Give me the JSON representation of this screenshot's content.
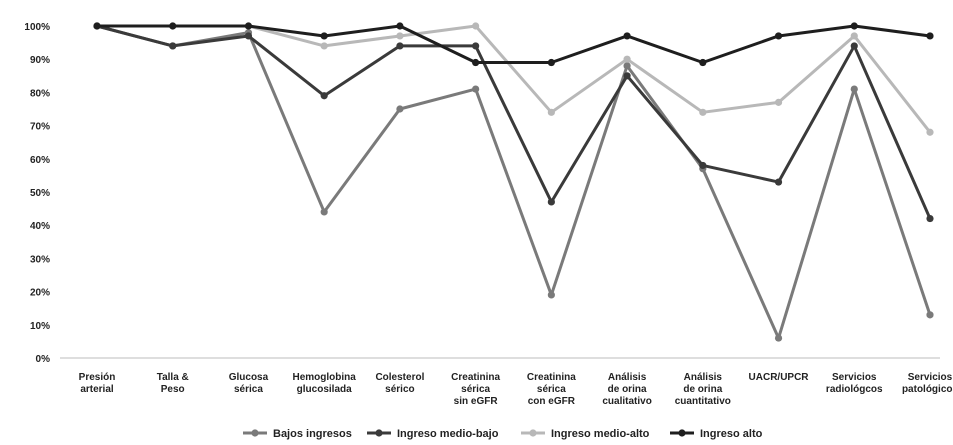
{
  "chart_data": {
    "type": "line",
    "title": "",
    "xlabel": "",
    "ylabel": "",
    "ylim": [
      0,
      100
    ],
    "y_ticks": [
      "0%",
      "10%",
      "20%",
      "30%",
      "40%",
      "50%",
      "60%",
      "70%",
      "80%",
      "90%",
      "100%"
    ],
    "grid": false,
    "legend_position": "bottom",
    "categories": [
      [
        "Presión",
        "arterial"
      ],
      [
        "Talla &",
        "Peso"
      ],
      [
        "Glucosa",
        "sérica"
      ],
      [
        "Hemoglobina",
        "glucosilada"
      ],
      [
        "Colesterol",
        "sérico"
      ],
      [
        "Creatinina",
        "sérica",
        "sin eGFR"
      ],
      [
        "Creatinina",
        "sérica",
        "con eGFR"
      ],
      [
        "Análisis",
        "de orina",
        "cualitativo"
      ],
      [
        "Análisis",
        "de orina",
        "cuantitativo"
      ],
      [
        "UACR/UPCR"
      ],
      [
        "Servicios",
        "radiológcos"
      ],
      [
        "Servicios",
        "patológicos"
      ]
    ],
    "series": [
      {
        "name": "Bajos ingresos",
        "color": "#7a7a7a",
        "values": [
          100,
          94,
          98,
          44,
          75,
          81,
          19,
          88,
          57,
          6,
          81,
          13
        ]
      },
      {
        "name": "Ingreso medio-bajo",
        "color": "#3a3a3a",
        "values": [
          100,
          94,
          97,
          79,
          94,
          94,
          47,
          85,
          58,
          53,
          94,
          42
        ]
      },
      {
        "name": "Ingreso medio-alto",
        "color": "#b8b8b8",
        "values": [
          100,
          100,
          100,
          94,
          97,
          100,
          74,
          90,
          74,
          77,
          97,
          68
        ]
      },
      {
        "name": "Ingreso alto",
        "color": "#1e1e1e",
        "values": [
          100,
          100,
          100,
          97,
          100,
          89,
          89,
          97,
          89,
          97,
          100,
          97
        ]
      }
    ]
  }
}
